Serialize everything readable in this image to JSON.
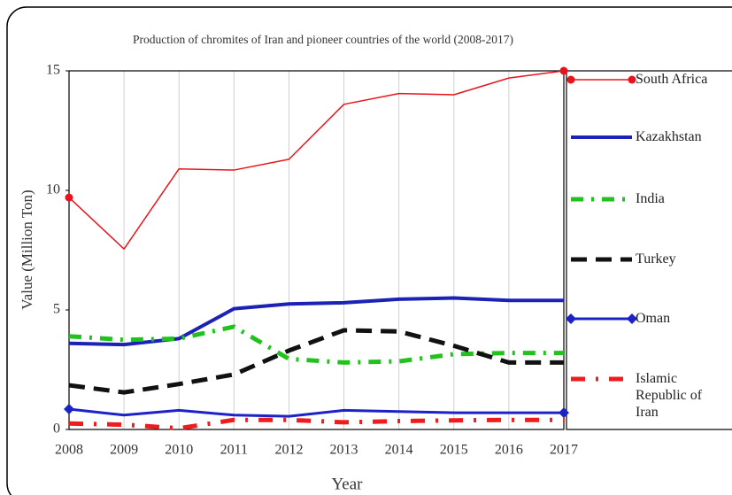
{
  "chart_data": {
    "type": "line",
    "title": "Production of chromites of Iran and pioneer countries of the world (2008-2017)",
    "x_label": "Year",
    "y_label": "Value (Million Ton)",
    "categories": [
      "2008",
      "2009",
      "2010",
      "2011",
      "2012",
      "2013",
      "2014",
      "2015",
      "2016",
      "2017"
    ],
    "ylim": [
      0,
      15
    ],
    "yticks": [
      0,
      5,
      10,
      15
    ],
    "grid": true,
    "legend": "right",
    "series": [
      {
        "name": "South Africa",
        "color": "#e8141b",
        "values": [
          9.7,
          7.55,
          10.9,
          10.85,
          11.3,
          13.6,
          14.05,
          14.0,
          14.7,
          15.0
        ]
      },
      {
        "name": "Kazakhstan",
        "color": "#1b22b5",
        "values": [
          3.6,
          3.55,
          3.8,
          5.05,
          5.25,
          5.3,
          5.45,
          5.5,
          5.4,
          5.4
        ]
      },
      {
        "name": "India",
        "color": "#22c21e",
        "values": [
          3.9,
          3.75,
          3.8,
          4.3,
          2.95,
          2.8,
          2.85,
          3.15,
          3.2,
          3.2
        ]
      },
      {
        "name": "Turkey",
        "color": "#111111",
        "values": [
          1.85,
          1.55,
          1.9,
          2.3,
          3.3,
          4.15,
          4.1,
          3.5,
          2.8,
          2.8
        ]
      },
      {
        "name": "Oman",
        "color": "#1b22c8",
        "values": [
          0.85,
          0.6,
          0.8,
          0.6,
          0.55,
          0.8,
          0.75,
          0.7,
          0.7,
          0.7
        ]
      },
      {
        "name": "Islamic Republic of Iran",
        "color": "#ee1c1c",
        "values": [
          0.25,
          0.2,
          0.05,
          0.4,
          0.4,
          0.3,
          0.35,
          0.38,
          0.4,
          0.4
        ]
      }
    ]
  }
}
